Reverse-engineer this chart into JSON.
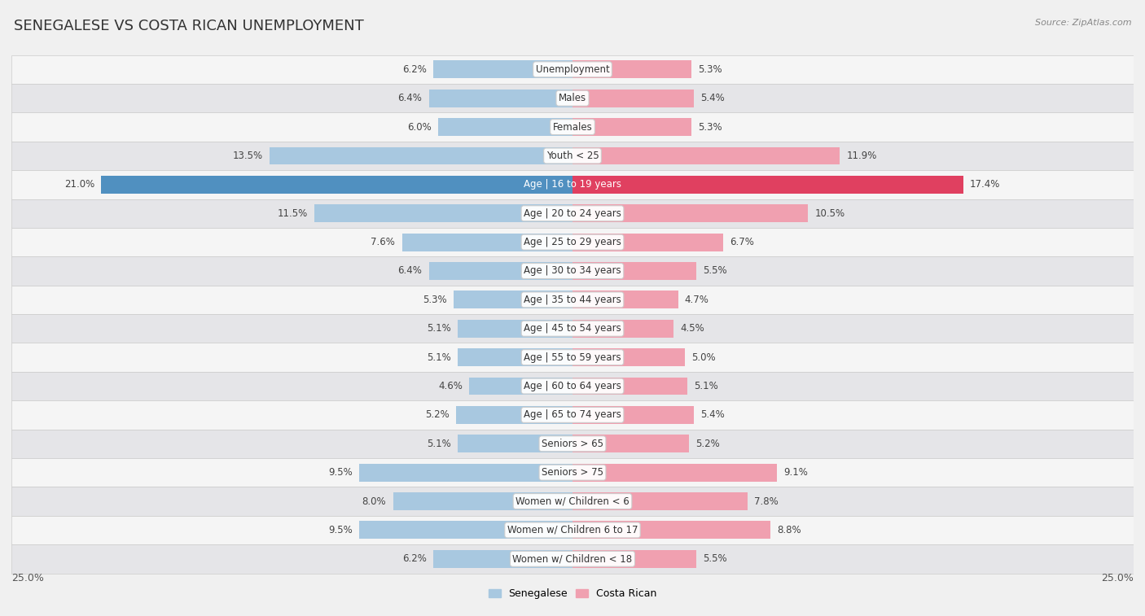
{
  "title": "SENEGALESE VS COSTA RICAN UNEMPLOYMENT",
  "source": "Source: ZipAtlas.com",
  "categories": [
    "Unemployment",
    "Males",
    "Females",
    "Youth < 25",
    "Age | 16 to 19 years",
    "Age | 20 to 24 years",
    "Age | 25 to 29 years",
    "Age | 30 to 34 years",
    "Age | 35 to 44 years",
    "Age | 45 to 54 years",
    "Age | 55 to 59 years",
    "Age | 60 to 64 years",
    "Age | 65 to 74 years",
    "Seniors > 65",
    "Seniors > 75",
    "Women w/ Children < 6",
    "Women w/ Children 6 to 17",
    "Women w/ Children < 18"
  ],
  "senegalese": [
    6.2,
    6.4,
    6.0,
    13.5,
    21.0,
    11.5,
    7.6,
    6.4,
    5.3,
    5.1,
    5.1,
    4.6,
    5.2,
    5.1,
    9.5,
    8.0,
    9.5,
    6.2
  ],
  "costa_rican": [
    5.3,
    5.4,
    5.3,
    11.9,
    17.4,
    10.5,
    6.7,
    5.5,
    4.7,
    4.5,
    5.0,
    5.1,
    5.4,
    5.2,
    9.1,
    7.8,
    8.8,
    5.5
  ],
  "senegalese_color": "#a8c8e0",
  "costa_rican_color": "#f0a0b0",
  "highlight_senegalese_color": "#5090c0",
  "highlight_costa_rican_color": "#e04060",
  "bg_light": "#f5f5f5",
  "bg_dark": "#e5e5e8",
  "row_border": "#d0d0d0",
  "max_val": 25.0,
  "bar_height": 0.62,
  "title_fontsize": 13,
  "label_fontsize": 8.5,
  "value_fontsize": 8.5,
  "tick_fontsize": 9
}
